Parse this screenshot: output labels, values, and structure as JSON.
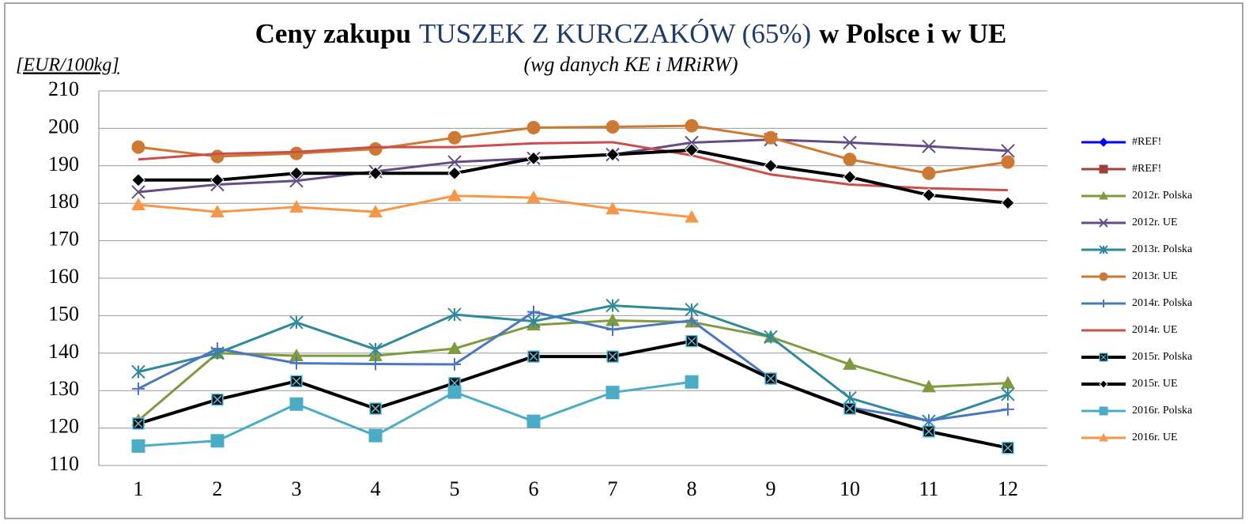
{
  "chart_data": {
    "type": "line",
    "title": {
      "prefix": "Ceny zakupu",
      "highlight": "TUSZEK Z KURCZAKÓW (65%)",
      "suffix": "w Polsce i w UE"
    },
    "subtitle": "(wg  danych  KE i MRiRW)",
    "y_label": "[EUR/100kg]",
    "categories": [
      "1",
      "2",
      "3",
      "4",
      "5",
      "6",
      "7",
      "8",
      "9",
      "10",
      "11",
      "12"
    ],
    "ylim": [
      110,
      210
    ],
    "yticks": [
      110,
      120,
      130,
      140,
      150,
      160,
      170,
      180,
      190,
      200,
      210
    ],
    "grid": true,
    "legend": "right",
    "series": [
      {
        "name": "#REF!",
        "color": "#0000ff",
        "marker": "diamond",
        "values": [
          null,
          null,
          null,
          null,
          null,
          null,
          null,
          null,
          null,
          null,
          null,
          null
        ]
      },
      {
        "name": "#REF!",
        "color": "#a0403a",
        "marker": "square",
        "values": [
          null,
          null,
          null,
          null,
          null,
          null,
          null,
          null,
          null,
          null,
          null,
          null
        ]
      },
      {
        "name": "2012r. Polska",
        "color": "#7f9a3f",
        "marker": "triangle",
        "values": [
          122,
          140,
          139.3,
          139.3,
          141.2,
          147.5,
          148.7,
          148.3,
          144.3,
          137,
          131,
          132
        ]
      },
      {
        "name": "2012r. UE",
        "color": "#654c86",
        "marker": "x",
        "values": [
          183,
          185,
          186,
          188.5,
          191,
          192,
          193,
          196.2,
          197,
          196.2,
          195.2,
          194
        ]
      },
      {
        "name": "2013r. Polska",
        "color": "#2f8a9a",
        "marker": "star",
        "values": [
          135,
          140,
          148.2,
          141,
          150.3,
          148.5,
          152.7,
          151.6,
          144.3,
          128,
          121.8,
          129
        ]
      },
      {
        "name": "2013r. UE",
        "color": "#cc7a33",
        "marker": "circle",
        "values": [
          195,
          192.5,
          193.3,
          194.5,
          197.5,
          200.2,
          200.4,
          200.7,
          197.5,
          191.7,
          188,
          191
        ]
      },
      {
        "name": "2014r. Polska",
        "color": "#4a78c0",
        "marker": "plus",
        "values": [
          130.5,
          141.2,
          137.3,
          137.1,
          137,
          151,
          146.3,
          148.7,
          133.2,
          125.5,
          122,
          125
        ]
      },
      {
        "name": "2014r. UE",
        "color": "#c9504a",
        "marker": "none",
        "values": [
          191.7,
          193.2,
          193.7,
          195,
          195,
          196,
          196.3,
          192.8,
          187.7,
          185,
          184,
          183.5
        ]
      },
      {
        "name": "2015r. Polska",
        "color": "#000000",
        "marker": "square-x",
        "values": [
          121.2,
          127.6,
          132.5,
          125.2,
          132,
          139.1,
          139.1,
          143.2,
          133.2,
          125.2,
          119.1,
          114.7
        ]
      },
      {
        "name": "2015r. UE",
        "color": "#000000",
        "marker": "diamond",
        "values": [
          186.2,
          186.2,
          188,
          188,
          188,
          192,
          193,
          194.2,
          190,
          187,
          182.2,
          180.1
        ]
      },
      {
        "name": "2016r. Polska",
        "color": "#4bacc6",
        "marker": "square",
        "values": [
          115.2,
          116.6,
          126.4,
          118,
          129.6,
          121.8,
          129.5,
          132.3,
          null,
          null,
          null,
          null
        ]
      },
      {
        "name": "2016r. UE",
        "color": "#f79646",
        "marker": "triangle",
        "values": [
          179.6,
          177.7,
          179,
          177.7,
          182,
          181.5,
          178.5,
          176.3,
          null,
          null,
          null,
          null
        ]
      }
    ]
  }
}
